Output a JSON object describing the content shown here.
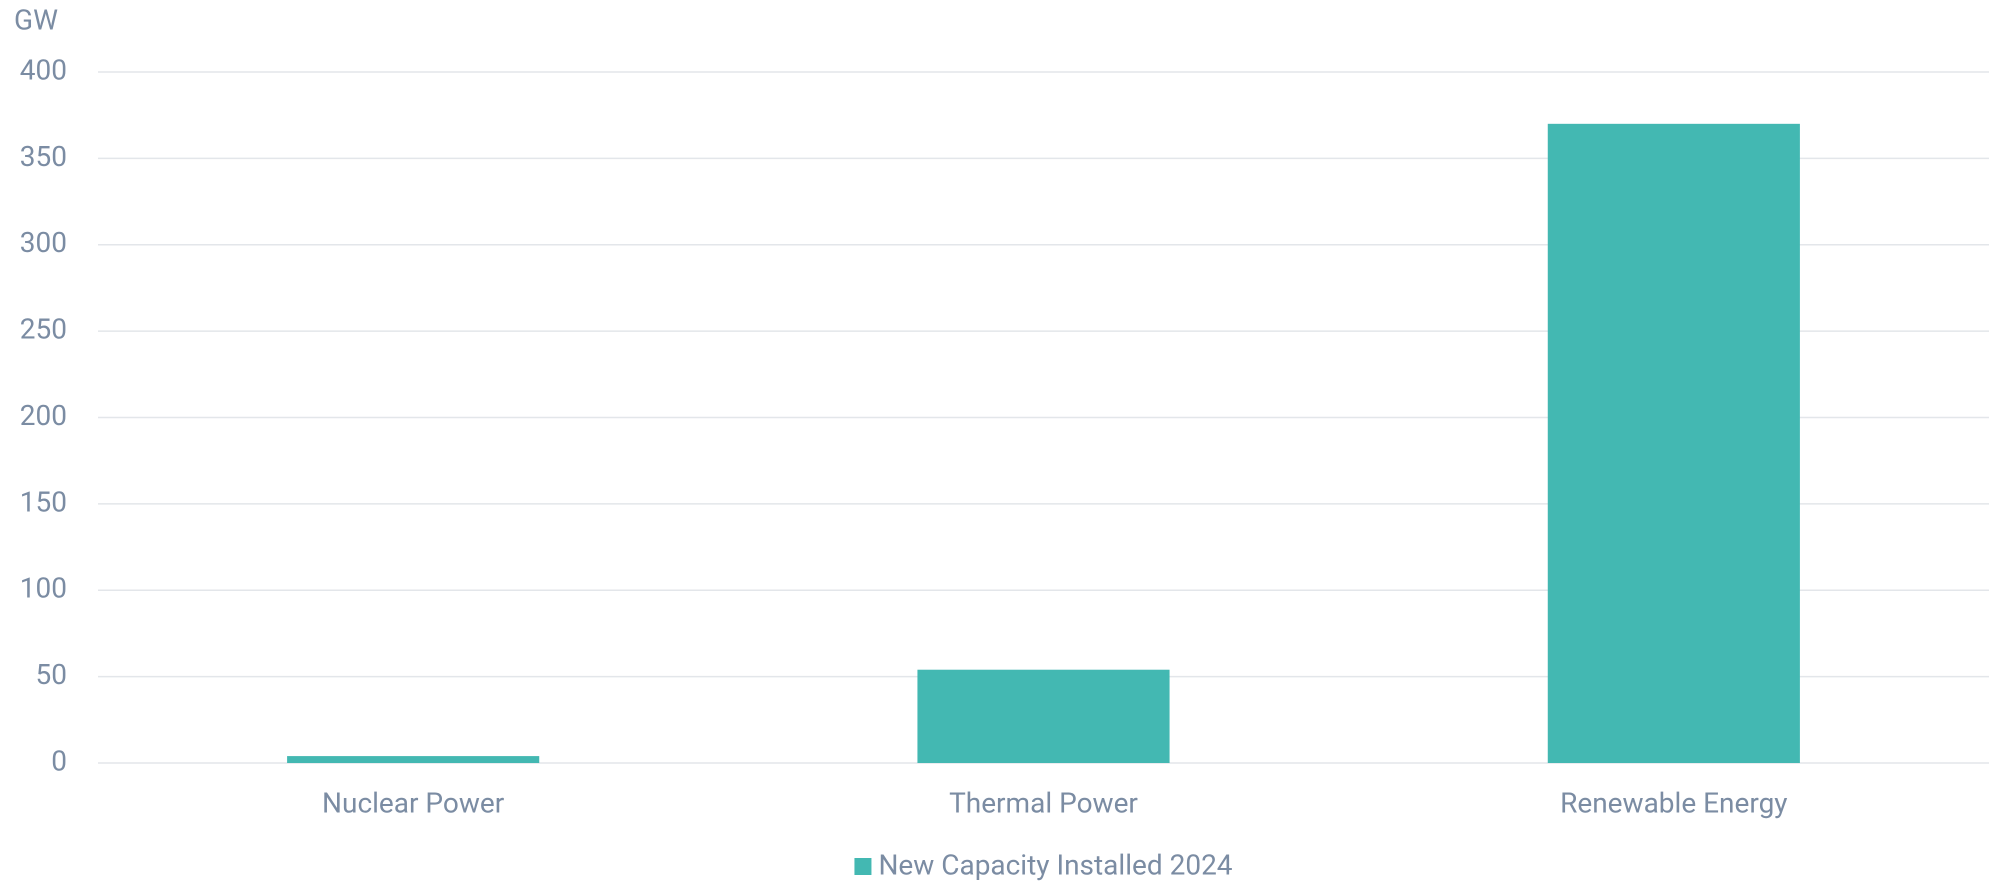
{
  "chart_data": {
    "type": "bar",
    "y_label": "GW",
    "categories": [
      "Nuclear Power",
      "Thermal Power",
      "Renewable Energy"
    ],
    "series": [
      {
        "name": "New Capacity Installed 2024",
        "color": "#43b8b2",
        "values": [
          4,
          54,
          370
        ]
      }
    ],
    "ylim": [
      0,
      400
    ],
    "yticks": [
      0,
      50,
      100,
      150,
      200,
      250,
      300,
      350,
      400
    ],
    "grid": true,
    "legend": "bottom"
  }
}
